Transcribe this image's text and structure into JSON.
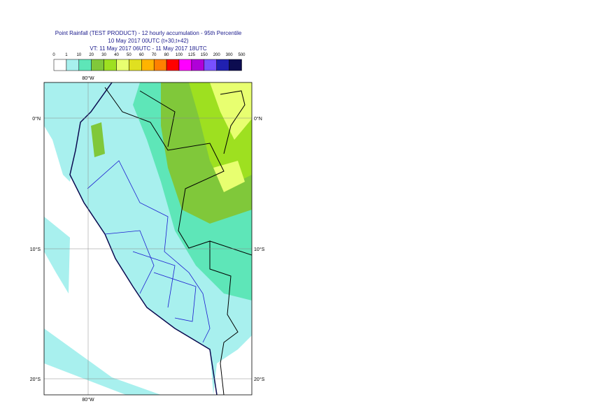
{
  "header": {
    "title": [
      "Point Rainfall (TEST PRODUCT) - 12 hourly accumulation - 95th Percentile",
      "10 May 2017 00UTC (t+30,t+42)",
      "VT: 11 May 2017 06UTC - 11 May 2017 18UTC"
    ]
  },
  "legend": {
    "labels": [
      "0",
      "1",
      "10",
      "20",
      "30",
      "40",
      "50",
      "60",
      "70",
      "80",
      "100",
      "125",
      "150",
      "200",
      "300",
      "500"
    ],
    "colors": [
      "#ffffff",
      "#a8f0ee",
      "#5ee6b8",
      "#80c83a",
      "#9ee020",
      "#e8ff70",
      "#e0e020",
      "#ffb400",
      "#ff8000",
      "#ff0000",
      "#ff00ff",
      "#b000d8",
      "#7850ff",
      "#2020b0",
      "#0c0c50"
    ]
  },
  "axes": {
    "top": "80°W",
    "bottom": "80°W",
    "left": [
      "0°N",
      "10°S",
      "20°S"
    ],
    "right": [
      "0°N",
      "10°S",
      "20°S"
    ]
  }
}
